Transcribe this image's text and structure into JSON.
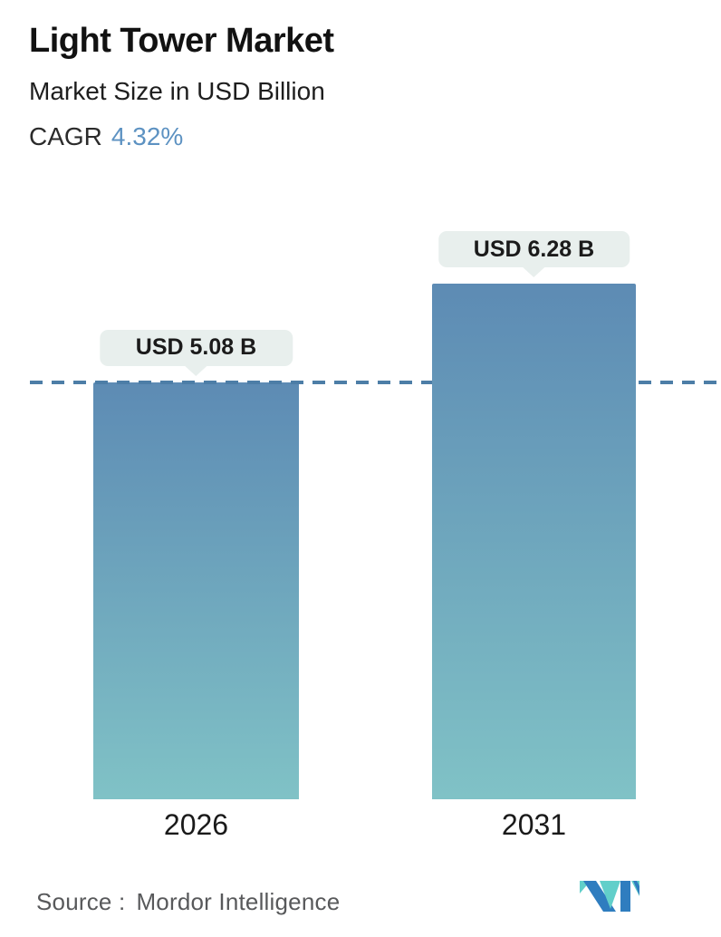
{
  "header": {
    "title": "Light Tower Market",
    "subtitle": "Market Size in USD Billion",
    "cagr_label": "CAGR",
    "cagr_value": "4.32%"
  },
  "chart_data": {
    "type": "bar",
    "title": "Light Tower Market",
    "subtitle": "Market Size in USD Billion",
    "unit": "USD Billion",
    "cagr_percent": 4.32,
    "categories": [
      "2026",
      "2031"
    ],
    "values": [
      5.08,
      6.28
    ],
    "value_labels": [
      "USD 5.08 B",
      "USD 6.28 B"
    ],
    "ylim": [
      0,
      6.28
    ],
    "grid": false,
    "legend": "none",
    "reference_line": {
      "at_value": 5.08,
      "style": "dashed",
      "color": "#4d7ea7"
    },
    "bar_gradient_top": "#5d8bb4",
    "bar_gradient_bottom": "#80c2c6"
  },
  "footer": {
    "source_label": "Source :",
    "source_value": "Mordor Intelligence",
    "logo": "mordor-intelligence-logo"
  },
  "colors": {
    "accent_blue": "#5d92c2",
    "dashed_line": "#4d7ea7",
    "callout_bg": "#e8efed",
    "text_dark": "#1a1a1a",
    "source_text": "#58595b",
    "logo_blue": "#2f7dbf",
    "logo_teal": "#62cfca"
  }
}
